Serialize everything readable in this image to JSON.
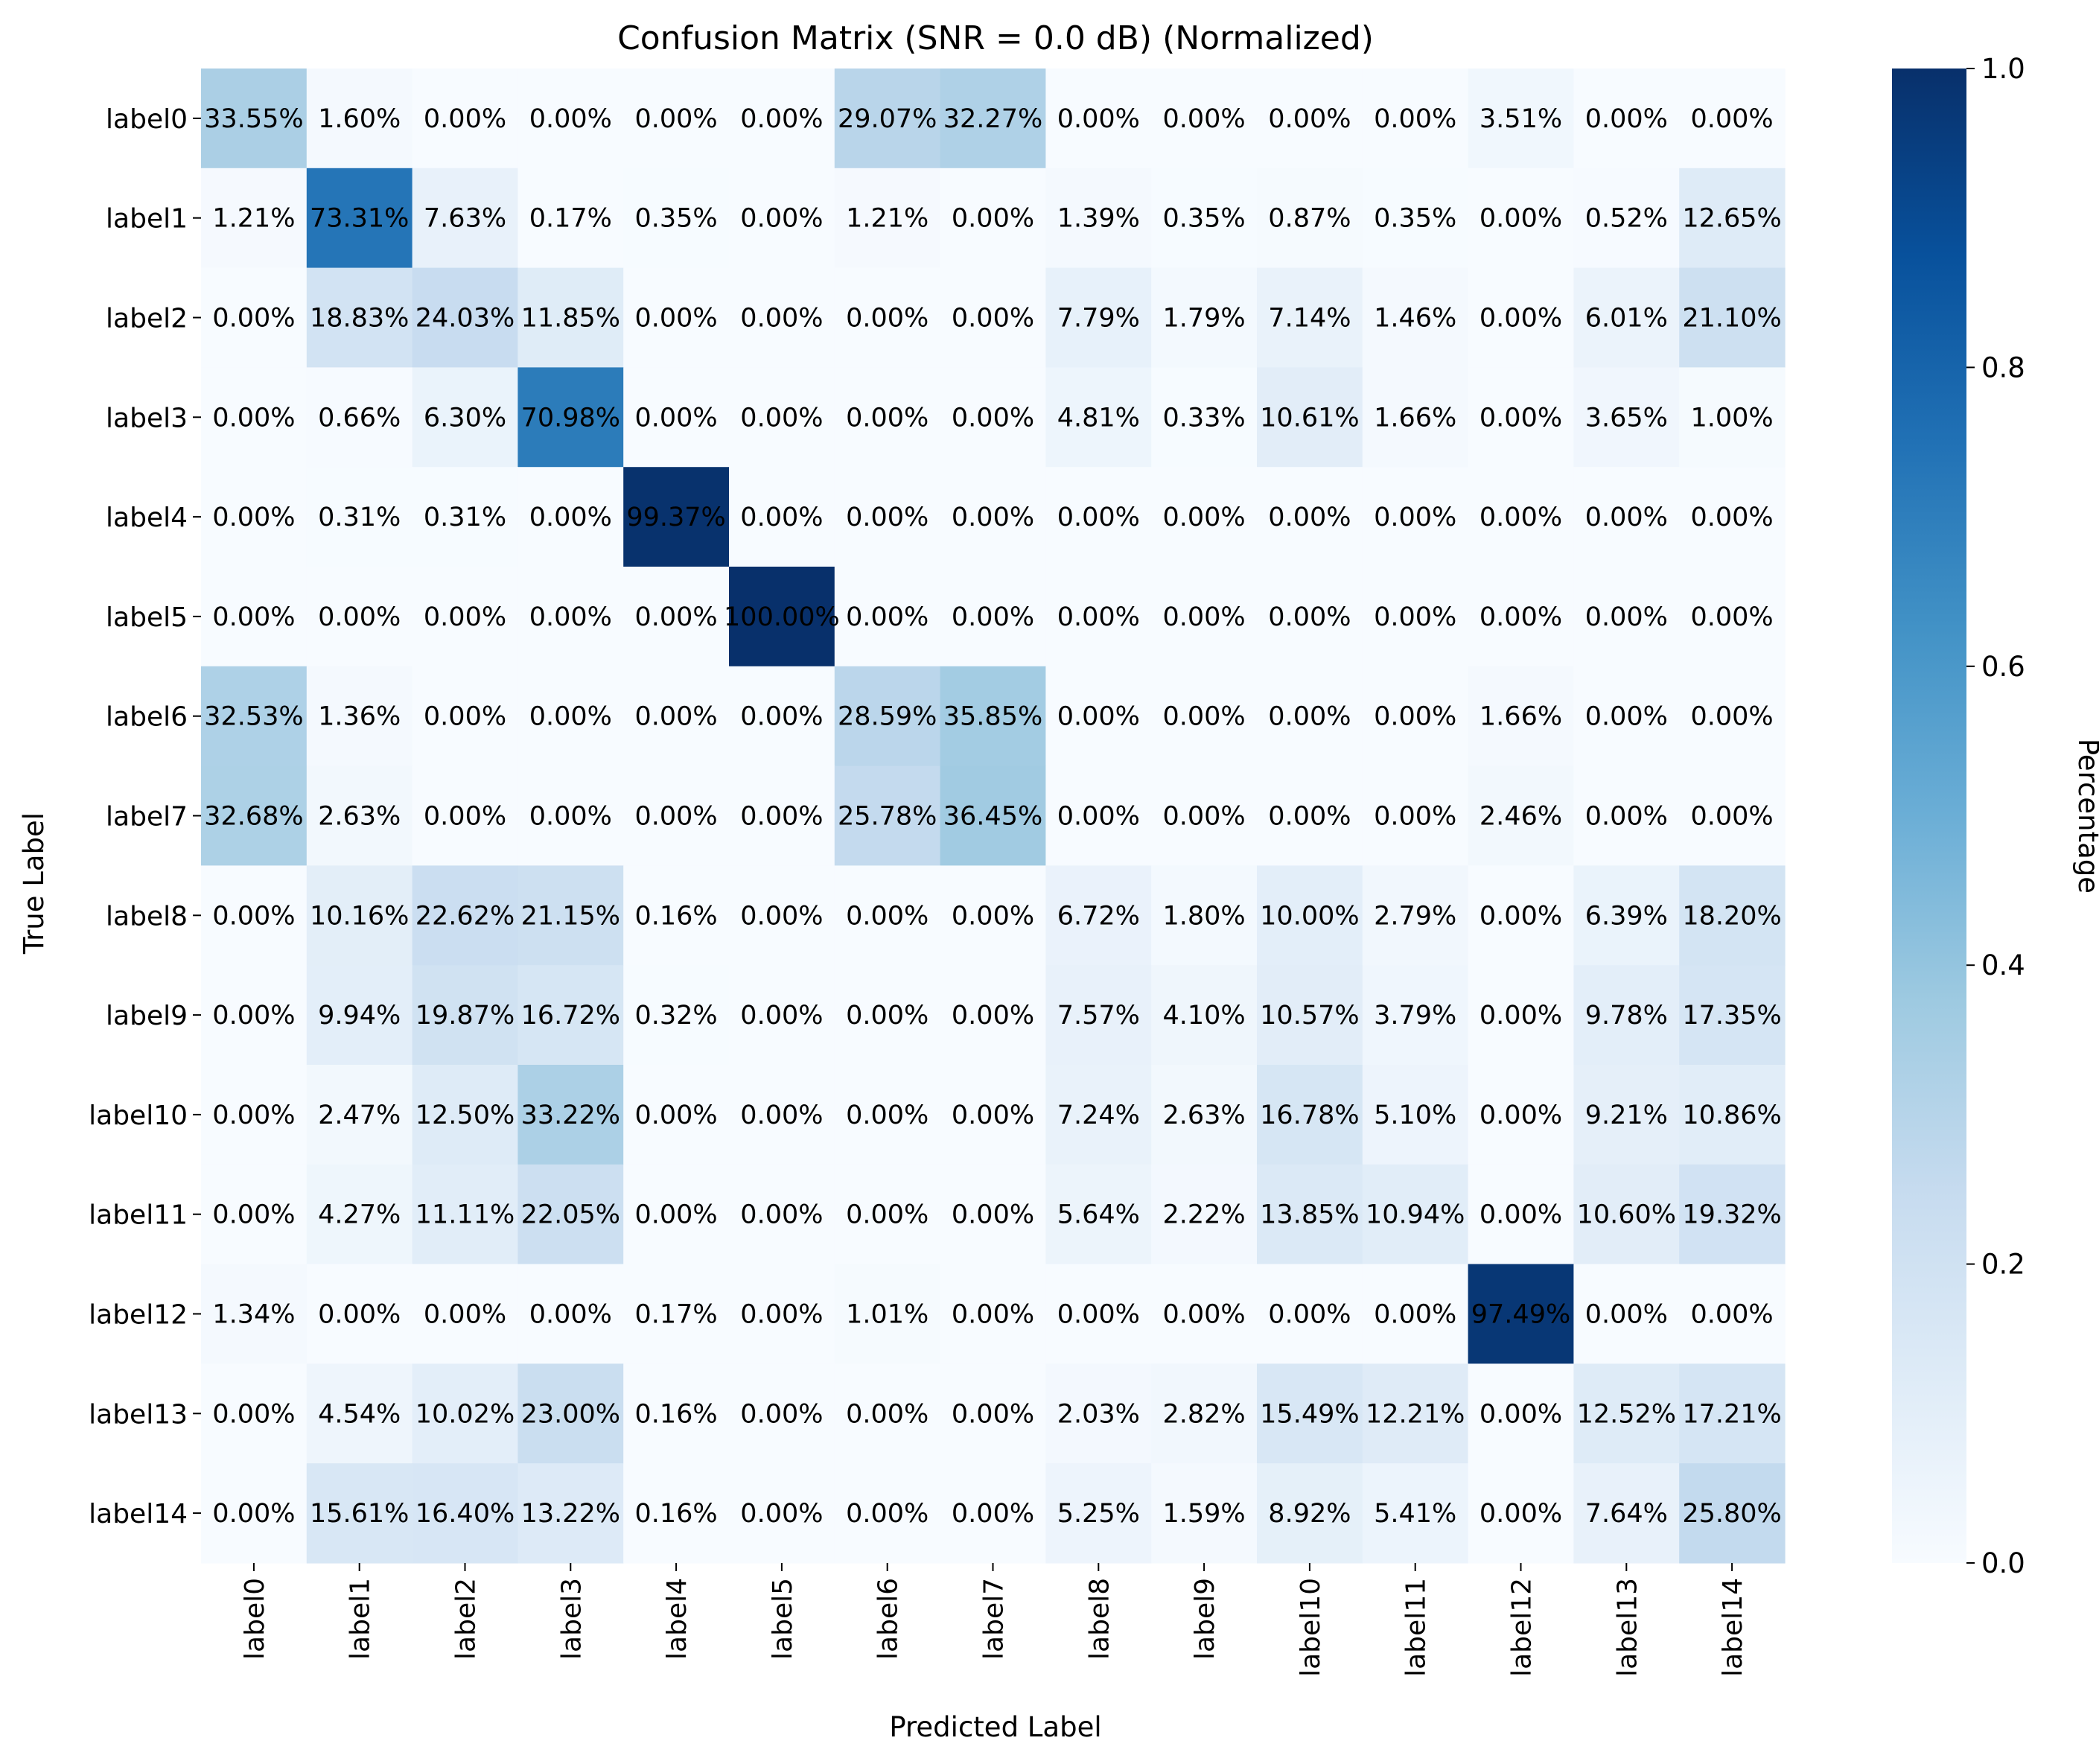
{
  "chart_data": {
    "type": "heatmap",
    "title": "Confusion Matrix (SNR = 0.0 dB) (Normalized)",
    "xlabel": "Predicted Label",
    "ylabel": "True Label",
    "x_categories": [
      "label0",
      "label1",
      "label2",
      "label3",
      "label4",
      "label5",
      "label6",
      "label7",
      "label8",
      "label9",
      "label10",
      "label11",
      "label12",
      "label13",
      "label14"
    ],
    "y_categories": [
      "label0",
      "label1",
      "label2",
      "label3",
      "label4",
      "label5",
      "label6",
      "label7",
      "label8",
      "label9",
      "label10",
      "label11",
      "label12",
      "label13",
      "label14"
    ],
    "values": [
      [
        33.55,
        1.6,
        0.0,
        0.0,
        0.0,
        0.0,
        29.07,
        32.27,
        0.0,
        0.0,
        0.0,
        0.0,
        3.51,
        0.0,
        0.0
      ],
      [
        1.21,
        73.31,
        7.63,
        0.17,
        0.35,
        0.0,
        1.21,
        0.0,
        1.39,
        0.35,
        0.87,
        0.35,
        0.0,
        0.52,
        12.65
      ],
      [
        0.0,
        18.83,
        24.03,
        11.85,
        0.0,
        0.0,
        0.0,
        0.0,
        7.79,
        1.79,
        7.14,
        1.46,
        0.0,
        6.01,
        21.1
      ],
      [
        0.0,
        0.66,
        6.3,
        70.98,
        0.0,
        0.0,
        0.0,
        0.0,
        4.81,
        0.33,
        10.61,
        1.66,
        0.0,
        3.65,
        1.0
      ],
      [
        0.0,
        0.31,
        0.31,
        0.0,
        99.37,
        0.0,
        0.0,
        0.0,
        0.0,
        0.0,
        0.0,
        0.0,
        0.0,
        0.0,
        0.0
      ],
      [
        0.0,
        0.0,
        0.0,
        0.0,
        0.0,
        100.0,
        0.0,
        0.0,
        0.0,
        0.0,
        0.0,
        0.0,
        0.0,
        0.0,
        0.0
      ],
      [
        32.53,
        1.36,
        0.0,
        0.0,
        0.0,
        0.0,
        28.59,
        35.85,
        0.0,
        0.0,
        0.0,
        0.0,
        1.66,
        0.0,
        0.0
      ],
      [
        32.68,
        2.63,
        0.0,
        0.0,
        0.0,
        0.0,
        25.78,
        36.45,
        0.0,
        0.0,
        0.0,
        0.0,
        2.46,
        0.0,
        0.0
      ],
      [
        0.0,
        10.16,
        22.62,
        21.15,
        0.16,
        0.0,
        0.0,
        0.0,
        6.72,
        1.8,
        10.0,
        2.79,
        0.0,
        6.39,
        18.2
      ],
      [
        0.0,
        9.94,
        19.87,
        16.72,
        0.32,
        0.0,
        0.0,
        0.0,
        7.57,
        4.1,
        10.57,
        3.79,
        0.0,
        9.78,
        17.35
      ],
      [
        0.0,
        2.47,
        12.5,
        33.22,
        0.0,
        0.0,
        0.0,
        0.0,
        7.24,
        2.63,
        16.78,
        5.1,
        0.0,
        9.21,
        10.86
      ],
      [
        0.0,
        4.27,
        11.11,
        22.05,
        0.0,
        0.0,
        0.0,
        0.0,
        5.64,
        2.22,
        13.85,
        10.94,
        0.0,
        10.6,
        19.32
      ],
      [
        1.34,
        0.0,
        0.0,
        0.0,
        0.17,
        0.0,
        1.01,
        0.0,
        0.0,
        0.0,
        0.0,
        0.0,
        97.49,
        0.0,
        0.0
      ],
      [
        0.0,
        4.54,
        10.02,
        23.0,
        0.16,
        0.0,
        0.0,
        0.0,
        2.03,
        2.82,
        15.49,
        12.21,
        0.0,
        12.52,
        17.21
      ],
      [
        0.0,
        15.61,
        16.4,
        13.22,
        0.16,
        0.0,
        0.0,
        0.0,
        5.25,
        1.59,
        8.92,
        5.41,
        0.0,
        7.64,
        25.8
      ]
    ],
    "value_format": "percent, 2 decimals",
    "colormap": "Blues",
    "color_range": [
      0,
      1
    ],
    "colorbar": {
      "label": "Percentage",
      "ticks": [
        "0.0",
        "0.2",
        "0.4",
        "0.6",
        "0.8",
        "1.0"
      ]
    }
  }
}
